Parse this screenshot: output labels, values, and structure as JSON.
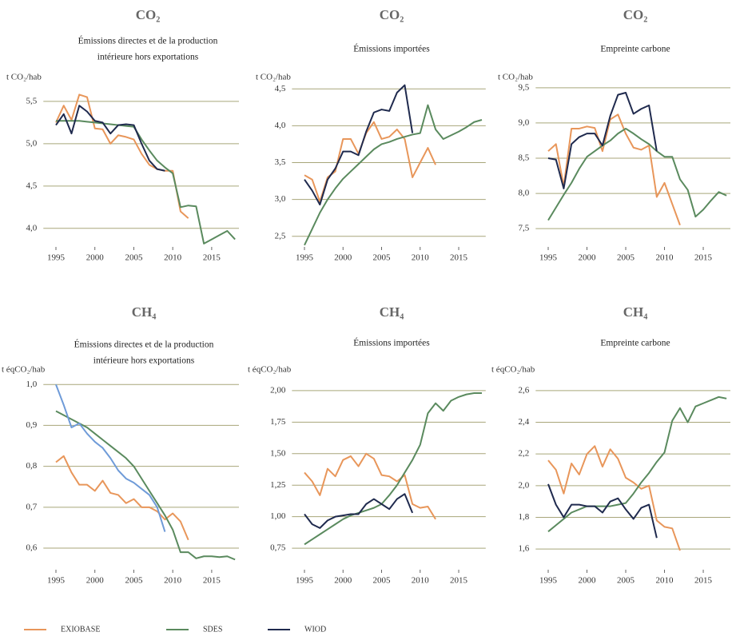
{
  "chart_data": [
    {
      "type": "line",
      "title": "CO₂",
      "subtitle": [
        "Émissions directes et de la production",
        "intérieure hors exportations"
      ],
      "ylabel": "t CO₂/hab",
      "x": [
        1995,
        1996,
        1997,
        1998,
        1999,
        2000,
        2001,
        2002,
        2003,
        2004,
        2005,
        2006,
        2007,
        2008,
        2009,
        2010,
        2011,
        2012,
        2013,
        2014,
        2015,
        2016,
        2017,
        2018
      ],
      "xlim": [
        1994,
        2018.5
      ],
      "xticks": [
        1995,
        2000,
        2005,
        2010,
        2015
      ],
      "ylim": [
        3.8,
        5.65
      ],
      "yticks": [
        {
          "value": 4.0,
          "label": "4,0"
        },
        {
          "value": 4.5,
          "label": "4,5"
        },
        {
          "value": 5.0,
          "label": "5,0"
        },
        {
          "value": 5.5,
          "label": "5,5"
        }
      ],
      "grid": true,
      "series": [
        {
          "name": "EXIOBASE",
          "color": "#e8965a",
          "values": [
            5.25,
            5.45,
            5.28,
            5.58,
            5.55,
            5.18,
            5.17,
            5.0,
            5.1,
            5.08,
            5.05,
            4.88,
            4.75,
            4.7,
            4.68,
            4.68,
            4.2,
            4.12,
            null,
            null,
            null,
            null,
            null,
            null
          ]
        },
        {
          "name": "SDES",
          "color": "#5a8a5e",
          "values": [
            5.27,
            5.27,
            5.27,
            5.27,
            5.26,
            5.25,
            5.24,
            5.23,
            5.22,
            5.21,
            5.2,
            5.05,
            4.92,
            4.8,
            4.72,
            4.65,
            4.25,
            4.27,
            4.26,
            3.82,
            3.87,
            3.92,
            3.97,
            3.87
          ]
        },
        {
          "name": "WIOD",
          "color": "#1f2a4e",
          "values": [
            5.22,
            5.35,
            5.12,
            5.45,
            5.38,
            5.27,
            5.25,
            5.12,
            5.22,
            5.23,
            5.22,
            5.0,
            4.8,
            4.7,
            4.68,
            null,
            null,
            null,
            null,
            null,
            null,
            null,
            null,
            null
          ]
        }
      ]
    },
    {
      "type": "line",
      "title": "CO₂",
      "subtitle": [
        "Émissions importées"
      ],
      "ylabel": "t CO₂/hab",
      "x": [
        1995,
        1996,
        1997,
        1998,
        1999,
        2000,
        2001,
        2002,
        2003,
        2004,
        2005,
        2006,
        2007,
        2008,
        2009,
        2010,
        2011,
        2012,
        2013,
        2014,
        2015,
        2016,
        2017,
        2018
      ],
      "xlim": [
        1994,
        2018.5
      ],
      "xticks": [
        1995,
        2000,
        2005,
        2010,
        2015
      ],
      "ylim": [
        2.4,
        4.6
      ],
      "yticks": [
        {
          "value": 2.5,
          "label": "2,5"
        },
        {
          "value": 3.0,
          "label": "3,0"
        },
        {
          "value": 3.5,
          "label": "3,5"
        },
        {
          "value": 4.0,
          "label": "4,0"
        },
        {
          "value": 4.5,
          "label": "4,5"
        }
      ],
      "grid": true,
      "series": [
        {
          "name": "EXIOBASE",
          "color": "#e8965a",
          "values": [
            3.33,
            3.27,
            2.97,
            3.3,
            3.38,
            3.82,
            3.82,
            3.62,
            3.9,
            4.05,
            3.82,
            3.85,
            3.95,
            3.82,
            3.3,
            3.5,
            3.7,
            3.47,
            null,
            null,
            null,
            null,
            null,
            null
          ]
        },
        {
          "name": "SDES",
          "color": "#5a8a5e",
          "values": [
            2.38,
            2.6,
            2.82,
            3.0,
            3.15,
            3.28,
            3.38,
            3.48,
            3.58,
            3.68,
            3.75,
            3.78,
            3.82,
            3.85,
            3.88,
            3.9,
            4.28,
            3.95,
            3.82,
            3.87,
            3.92,
            3.98,
            4.05,
            4.08
          ]
        },
        {
          "name": "WIOD",
          "color": "#1f2a4e",
          "values": [
            3.27,
            3.12,
            2.93,
            3.27,
            3.42,
            3.65,
            3.65,
            3.6,
            3.92,
            4.18,
            4.22,
            4.2,
            4.45,
            4.55,
            3.9,
            null,
            null,
            null,
            null,
            null,
            null,
            null,
            null,
            null
          ]
        }
      ]
    },
    {
      "type": "line",
      "title": "CO₂",
      "subtitle": [
        "Empreinte carbone"
      ],
      "ylabel": "t CO₂/hab",
      "x": [
        1995,
        1996,
        1997,
        1998,
        1999,
        2000,
        2001,
        2002,
        2003,
        2004,
        2005,
        2006,
        2007,
        2008,
        2009,
        2010,
        2011,
        2012,
        2013,
        2014,
        2015,
        2016,
        2017,
        2018
      ],
      "xlim": [
        1994,
        2018.5
      ],
      "xticks": [
        1995,
        2000,
        2005,
        2010,
        2015
      ],
      "ylim": [
        7.4,
        9.6
      ],
      "yticks": [
        {
          "value": 7.5,
          "label": "7,5"
        },
        {
          "value": 8.0,
          "label": "8,0"
        },
        {
          "value": 8.5,
          "label": "8,5"
        },
        {
          "value": 9.0,
          "label": "9,0"
        },
        {
          "value": 9.5,
          "label": "9,5"
        }
      ],
      "grid": true,
      "series": [
        {
          "name": "EXIOBASE",
          "color": "#e8965a",
          "values": [
            8.6,
            8.7,
            8.1,
            8.92,
            8.92,
            8.95,
            8.93,
            8.6,
            9.05,
            9.12,
            8.85,
            8.65,
            8.62,
            8.68,
            7.95,
            8.15,
            7.85,
            7.55,
            null,
            null,
            null,
            null,
            null,
            null
          ]
        },
        {
          "name": "SDES",
          "color": "#5a8a5e",
          "values": [
            7.62,
            7.8,
            7.98,
            8.15,
            8.35,
            8.52,
            8.6,
            8.68,
            8.75,
            8.85,
            8.92,
            8.85,
            8.77,
            8.7,
            8.6,
            8.52,
            8.52,
            8.2,
            8.05,
            7.67,
            7.77,
            7.9,
            8.02,
            7.97
          ]
        },
        {
          "name": "WIOD",
          "color": "#1f2a4e",
          "values": [
            8.5,
            8.48,
            8.07,
            8.7,
            8.8,
            8.85,
            8.85,
            8.68,
            9.1,
            9.4,
            9.43,
            9.13,
            9.2,
            9.25,
            8.6,
            null,
            null,
            null,
            null,
            null,
            null,
            null,
            null,
            null
          ]
        }
      ]
    },
    {
      "type": "line",
      "title": "CH₄",
      "subtitle": [
        "Émissions directes et de la production",
        "intérieure hors exportations"
      ],
      "ylabel": "t éqCO₂/hab",
      "x": [
        1995,
        1996,
        1997,
        1998,
        1999,
        2000,
        2001,
        2002,
        2003,
        2004,
        2005,
        2006,
        2007,
        2008,
        2009,
        2010,
        2011,
        2012,
        2013,
        2014,
        2015,
        2016,
        2017,
        2018
      ],
      "xlim": [
        1994,
        2018.5
      ],
      "xticks": [
        1995,
        2000,
        2005,
        2010,
        2015
      ],
      "ylim": [
        0.56,
        1.02
      ],
      "yticks": [
        {
          "value": 0.6,
          "label": "0,6"
        },
        {
          "value": 0.7,
          "label": "0,7"
        },
        {
          "value": 0.8,
          "label": "0,8"
        },
        {
          "value": 0.9,
          "label": "0,9"
        },
        {
          "value": 1.0,
          "label": "1,0"
        }
      ],
      "grid": true,
      "series": [
        {
          "name": "EXIOBASE",
          "color": "#e8965a",
          "values": [
            0.81,
            0.825,
            0.785,
            0.755,
            0.755,
            0.74,
            0.765,
            0.735,
            0.73,
            0.71,
            0.72,
            0.7,
            0.7,
            0.69,
            0.67,
            0.685,
            0.665,
            0.62,
            null,
            null,
            null,
            null,
            null,
            null
          ]
        },
        {
          "name": "SDES",
          "color": "#5a8a5e",
          "values": [
            0.935,
            0.925,
            0.915,
            0.905,
            0.895,
            0.88,
            0.865,
            0.85,
            0.835,
            0.82,
            0.8,
            0.77,
            0.74,
            0.71,
            0.68,
            0.645,
            0.59,
            0.59,
            0.575,
            0.58,
            0.58,
            0.578,
            0.58,
            0.572
          ]
        },
        {
          "name": "WIOD",
          "color": "#6f9bd8",
          "values": [
            1.0,
            0.95,
            0.895,
            0.905,
            0.88,
            0.86,
            0.845,
            0.82,
            0.79,
            0.77,
            0.76,
            0.745,
            0.73,
            0.7,
            0.64,
            null,
            null,
            null,
            null,
            null,
            null,
            null,
            null,
            null
          ]
        }
      ]
    },
    {
      "type": "line",
      "title": "CH₄",
      "subtitle": [
        "Émissions importées"
      ],
      "ylabel": "t éqCO₂/hab",
      "x": [
        1995,
        1996,
        1997,
        1998,
        1999,
        2000,
        2001,
        2002,
        2003,
        2004,
        2005,
        2006,
        2007,
        2008,
        2009,
        2010,
        2011,
        2012,
        2013,
        2014,
        2015,
        2016,
        2017,
        2018
      ],
      "xlim": [
        1994,
        2018.5
      ],
      "xticks": [
        1995,
        2000,
        2005,
        2010,
        2015
      ],
      "ylim": [
        0.7,
        2.05
      ],
      "yticks": [
        {
          "value": 0.75,
          "label": "0,75"
        },
        {
          "value": 1.0,
          "label": "1,00"
        },
        {
          "value": 1.25,
          "label": "1,25"
        },
        {
          "value": 1.5,
          "label": "1,50"
        },
        {
          "value": 1.75,
          "label": "1,75"
        },
        {
          "value": 2.0,
          "label": "2,00"
        }
      ],
      "grid": true,
      "series": [
        {
          "name": "EXIOBASE",
          "color": "#e8965a",
          "values": [
            1.35,
            1.28,
            1.17,
            1.38,
            1.32,
            1.45,
            1.48,
            1.4,
            1.5,
            1.46,
            1.33,
            1.32,
            1.28,
            1.33,
            1.1,
            1.07,
            1.08,
            0.98,
            null,
            null,
            null,
            null,
            null,
            null
          ]
        },
        {
          "name": "SDES",
          "color": "#5a8a5e",
          "values": [
            0.78,
            0.82,
            0.86,
            0.9,
            0.94,
            0.98,
            1.01,
            1.03,
            1.05,
            1.07,
            1.1,
            1.17,
            1.25,
            1.35,
            1.45,
            1.57,
            1.82,
            1.9,
            1.84,
            1.92,
            1.95,
            1.97,
            1.98,
            1.98
          ]
        },
        {
          "name": "WIOD",
          "color": "#1f2a4e",
          "values": [
            1.02,
            0.94,
            0.91,
            0.97,
            1.0,
            1.01,
            1.02,
            1.02,
            1.1,
            1.14,
            1.1,
            1.06,
            1.14,
            1.18,
            1.03,
            null,
            null,
            null,
            null,
            null,
            null,
            null,
            null,
            null
          ]
        }
      ]
    },
    {
      "type": "line",
      "title": "CH₄",
      "subtitle": [
        "Empreinte carbone"
      ],
      "ylabel": "t éqCO₂/hab",
      "x": [
        1995,
        1996,
        1997,
        1998,
        1999,
        2000,
        2001,
        2002,
        2003,
        2004,
        2005,
        2006,
        2007,
        2008,
        2009,
        2010,
        2011,
        2012,
        2013,
        2014,
        2015,
        2016,
        2017,
        2018
      ],
      "xlim": [
        1994,
        2018.5
      ],
      "xticks": [
        1995,
        2000,
        2005,
        2010,
        2015
      ],
      "ylim": [
        1.55,
        2.65
      ],
      "yticks": [
        {
          "value": 1.6,
          "label": "1,6"
        },
        {
          "value": 1.8,
          "label": "1,8"
        },
        {
          "value": 2.0,
          "label": "2,0"
        },
        {
          "value": 2.2,
          "label": "2,2"
        },
        {
          "value": 2.4,
          "label": "2,4"
        },
        {
          "value": 2.6,
          "label": "2,6"
        }
      ],
      "grid": true,
      "series": [
        {
          "name": "EXIOBASE",
          "color": "#e8965a",
          "values": [
            2.16,
            2.1,
            1.95,
            2.14,
            2.07,
            2.2,
            2.25,
            2.12,
            2.23,
            2.17,
            2.05,
            2.02,
            1.98,
            2.0,
            1.78,
            1.74,
            1.73,
            1.59,
            null,
            null,
            null,
            null,
            null,
            null
          ]
        },
        {
          "name": "SDES",
          "color": "#5a8a5e",
          "values": [
            1.71,
            1.75,
            1.79,
            1.83,
            1.85,
            1.87,
            1.87,
            1.87,
            1.87,
            1.88,
            1.89,
            1.95,
            2.02,
            2.08,
            2.15,
            2.21,
            2.41,
            2.49,
            2.4,
            2.5,
            2.52,
            2.54,
            2.56,
            2.55
          ]
        },
        {
          "name": "WIOD",
          "color": "#1f2a4e",
          "values": [
            2.01,
            1.88,
            1.8,
            1.88,
            1.88,
            1.87,
            1.87,
            1.83,
            1.9,
            1.92,
            1.85,
            1.79,
            1.86,
            1.88,
            1.67,
            null,
            null,
            null,
            null,
            null,
            null,
            null,
            null,
            null
          ]
        }
      ]
    }
  ]
}
